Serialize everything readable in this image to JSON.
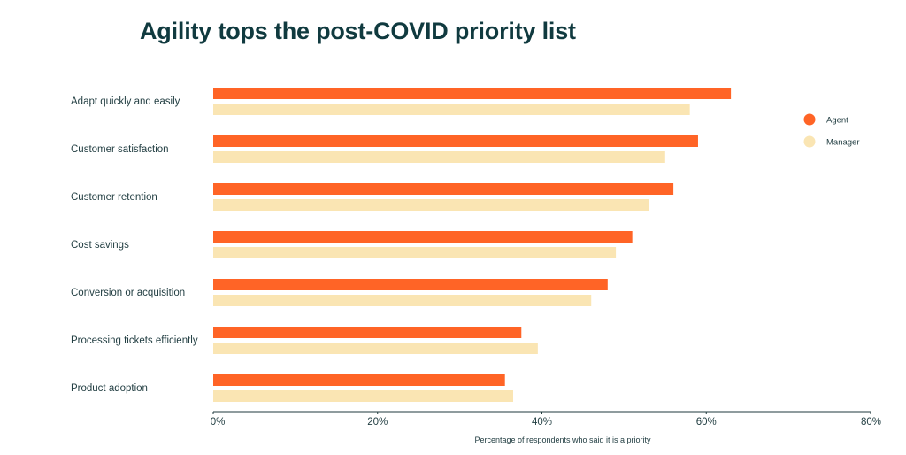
{
  "chart_data": {
    "type": "bar",
    "orientation": "horizontal",
    "title": "Agility tops the post-COVID priority list",
    "xlabel": "Percentage of respondents who said it is a priority",
    "ylabel": "",
    "categories": [
      "Adapt quickly and easily",
      "Customer satisfaction",
      "Customer retention",
      "Cost savings",
      "Conversion or acquisition",
      "Processing tickets efficiently",
      "Product adoption"
    ],
    "series": [
      {
        "name": "Agent",
        "color": "#ff6426",
        "values": [
          63,
          59,
          56,
          51,
          48,
          37.5,
          35.5
        ]
      },
      {
        "name": "Manager",
        "color": "#fae5b3",
        "values": [
          58,
          55,
          53,
          49,
          46,
          39.5,
          36.5
        ]
      }
    ],
    "xlim": [
      0,
      80
    ],
    "xticks": [
      "0%",
      "20%",
      "40%",
      "60%",
      "80%"
    ],
    "grid": false,
    "legend_position": "top-right"
  }
}
